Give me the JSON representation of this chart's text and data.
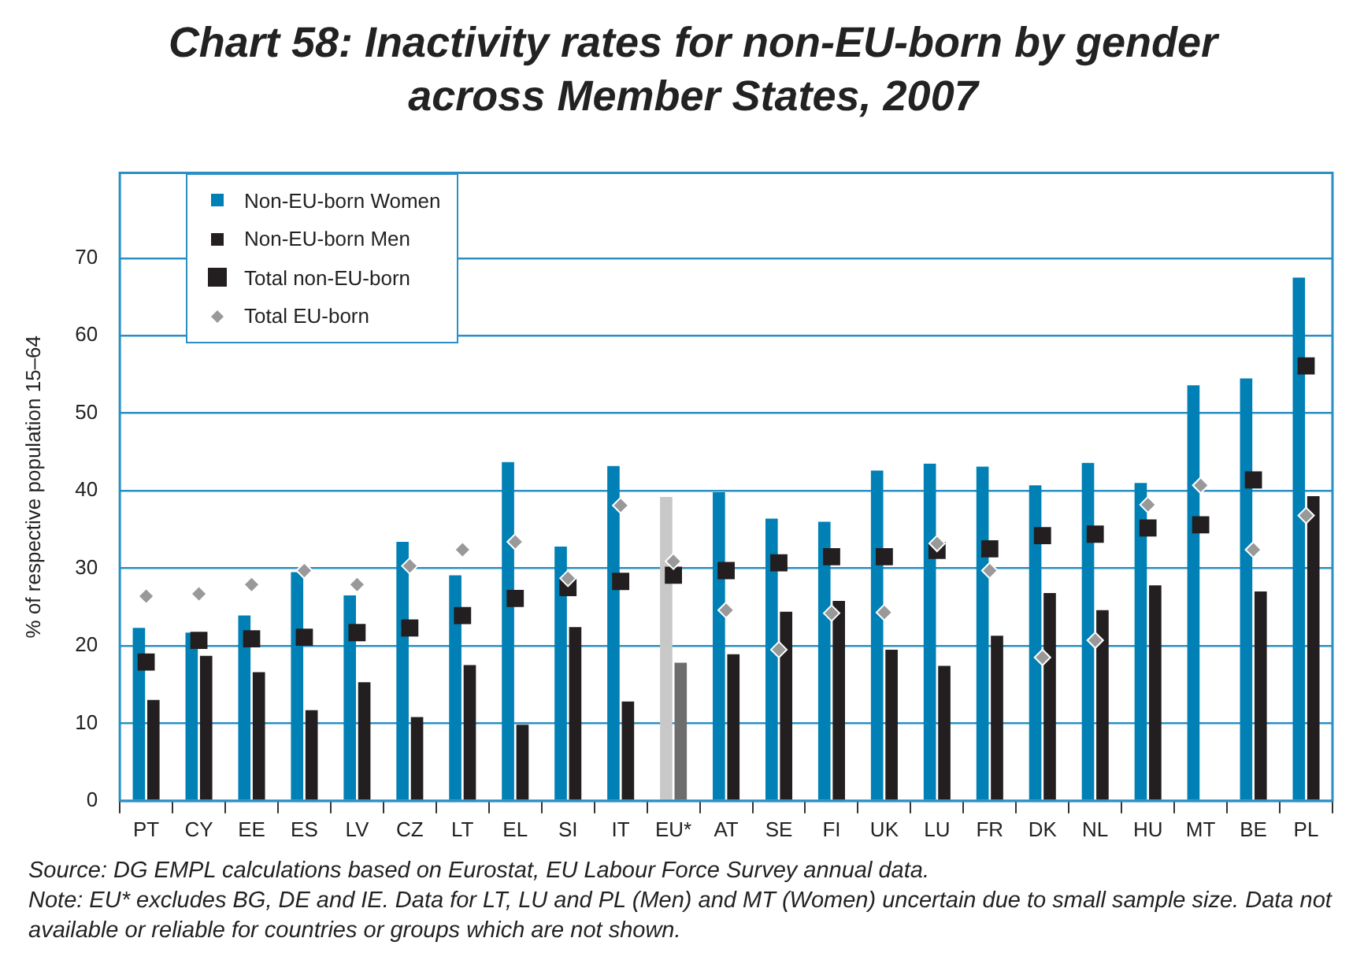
{
  "chart_data": {
    "type": "bar",
    "title": "Chart 58: Inactivity rates for non-EU-born by gender across Member States, 2007",
    "ylabel": "% of respective population 15–64",
    "categories": [
      "PT",
      "CY",
      "EE",
      "ES",
      "LV",
      "CZ",
      "LT",
      "EL",
      "SI",
      "IT",
      "EU*",
      "AT",
      "SE",
      "FI",
      "UK",
      "LU",
      "FR",
      "DK",
      "NL",
      "HU",
      "MT",
      "BE",
      "PL"
    ],
    "series": [
      {
        "name": "Non-EU-born Women",
        "color": "#0080b4",
        "colors": [
          "#0080b4",
          "#0080b4",
          "#0080b4",
          "#0080b4",
          "#0080b4",
          "#0080b4",
          "#0080b4",
          "#0080b4",
          "#0080b4",
          "#0080b4",
          "#c8c8c8",
          "#0080b4",
          "#0080b4",
          "#0080b4",
          "#0080b4",
          "#0080b4",
          "#0080b4",
          "#0080b4",
          "#0080b4",
          "#0080b4",
          "#0080b4",
          "#0080b4",
          "#0080b4"
        ],
        "values": [
          22.3,
          21.7,
          23.9,
          29.5,
          26.5,
          33.4,
          29.1,
          43.7,
          32.8,
          43.2,
          39.2,
          39.8,
          36.4,
          36.0,
          42.6,
          43.5,
          43.1,
          40.7,
          43.6,
          41.0,
          53.6,
          54.5,
          67.5
        ]
      },
      {
        "name": "Non-EU-born Men",
        "type": "bar",
        "color": "#231f20",
        "colors": [
          "#231f20",
          "#231f20",
          "#231f20",
          "#231f20",
          "#231f20",
          "#231f20",
          "#231f20",
          "#231f20",
          "#231f20",
          "#231f20",
          "#6d6d6d",
          "#231f20",
          "#231f20",
          "#231f20",
          "#231f20",
          "#231f20",
          "#231f20",
          "#231f20",
          "#231f20",
          "#231f20",
          "#231f20",
          "#231f20",
          "#231f20"
        ],
        "values": [
          13.0,
          18.7,
          16.6,
          11.7,
          15.3,
          10.8,
          17.5,
          9.8,
          22.4,
          12.8,
          17.8,
          18.9,
          24.4,
          25.8,
          19.5,
          17.4,
          21.3,
          26.8,
          24.6,
          27.8,
          null,
          27.0,
          39.3
        ]
      },
      {
        "name": "Total non-EU-born",
        "type": "scatter",
        "marker": "square",
        "color": "#231f20",
        "values": [
          17.9,
          20.7,
          20.9,
          21.1,
          21.7,
          22.3,
          23.9,
          26.1,
          27.5,
          28.3,
          29.1,
          29.7,
          30.7,
          31.5,
          31.5,
          32.3,
          32.5,
          34.2,
          34.4,
          35.2,
          35.6,
          41.4,
          56.1
        ]
      },
      {
        "name": "Total EU-born",
        "type": "scatter",
        "marker": "diamond",
        "color": "#999999",
        "values": [
          26.4,
          26.7,
          27.9,
          29.7,
          27.9,
          30.3,
          32.4,
          33.4,
          28.7,
          38.1,
          30.9,
          24.6,
          19.5,
          24.2,
          24.3,
          33.2,
          29.7,
          18.5,
          20.7,
          38.2,
          40.7,
          32.4,
          36.8
        ]
      }
    ],
    "ylim": [
      0,
      81
    ],
    "yticks": [
      0,
      10,
      20,
      30,
      40,
      50,
      60,
      70
    ],
    "grid": "y",
    "legend": "top left",
    "annotations": [
      "Source: DG EMPL calculations based on Eurostat, EU Labour Force Survey annual data.",
      "Note: EU* excludes BG, DE and IE. Data for LT, LU and PL (Men) and MT (Women) uncertain due to small sample size. Data not available or reliable for countries or groups which are not shown."
    ]
  }
}
